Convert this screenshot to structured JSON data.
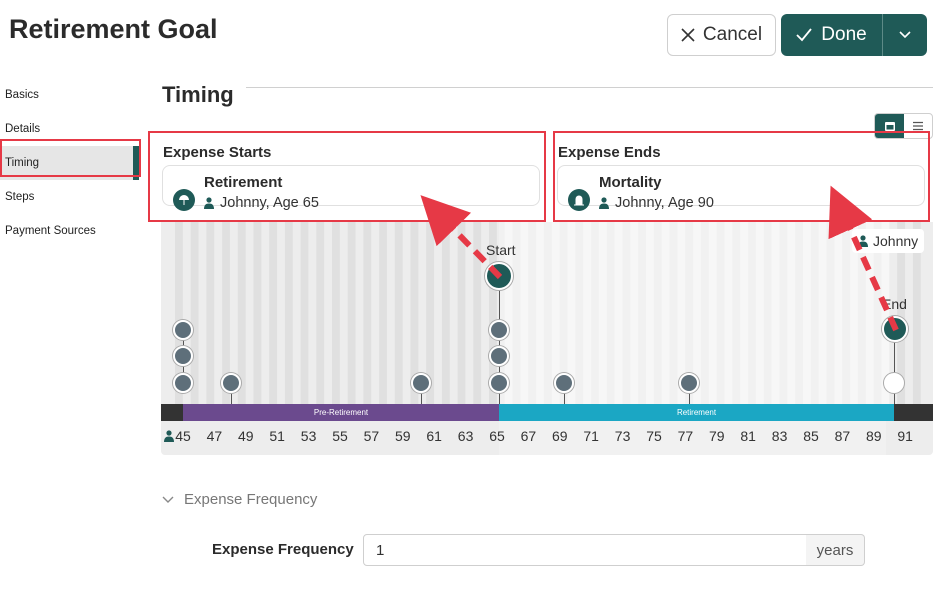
{
  "header": {
    "title": "Retirement Goal",
    "cancel_label": "Cancel",
    "done_label": "Done"
  },
  "nav": {
    "items": [
      {
        "label": "Basics"
      },
      {
        "label": "Details"
      },
      {
        "label": "Timing"
      },
      {
        "label": "Steps"
      },
      {
        "label": "Payment Sources"
      }
    ],
    "active": "Timing"
  },
  "section": {
    "title": "Timing"
  },
  "expense_starts": {
    "label": "Expense Starts",
    "event": "Retirement",
    "person": "Johnny, Age 65",
    "icon": "beach-umbrella-icon"
  },
  "expense_ends": {
    "label": "Expense Ends",
    "event": "Mortality",
    "person": "Johnny, Age 90",
    "icon": "headstone-icon"
  },
  "timeline": {
    "start_flag": "Start",
    "end_flag": "End",
    "person_tag": "Johnny",
    "pre_label": "Pre-Retirement",
    "ret_label": "Retirement",
    "ticks": [
      "45",
      "47",
      "49",
      "51",
      "53",
      "55",
      "57",
      "59",
      "61",
      "63",
      "65",
      "67",
      "69",
      "71",
      "73",
      "75",
      "77",
      "79",
      "81",
      "83",
      "85",
      "87",
      "89",
      "91"
    ],
    "colors": {
      "pre": "#6b4a8e",
      "ret": "#1ba7c4",
      "accent": "#1f5a57",
      "highlight": "#e63946"
    }
  },
  "frequency": {
    "toggle_label": "Expense Frequency",
    "label": "Expense Frequency",
    "value": "1",
    "unit": "years"
  }
}
